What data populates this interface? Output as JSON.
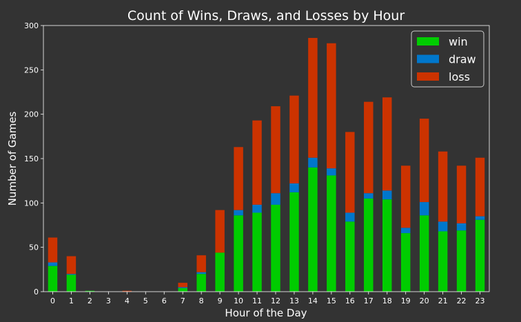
{
  "chart_data": {
    "type": "bar",
    "stacked": true,
    "title": "Count of Wins, Draws, and Losses by Hour",
    "xlabel": "Hour of the Day",
    "ylabel": "Number of Games",
    "ylim": [
      0,
      300
    ],
    "yticks": [
      0,
      50,
      100,
      150,
      200,
      250,
      300
    ],
    "grid": false,
    "legend_position": "top-right",
    "background_color": "#333333",
    "categories": [
      "0",
      "1",
      "2",
      "3",
      "4",
      "5",
      "6",
      "7",
      "8",
      "9",
      "10",
      "11",
      "12",
      "13",
      "14",
      "15",
      "16",
      "17",
      "18",
      "19",
      "20",
      "21",
      "22",
      "23"
    ],
    "series": [
      {
        "name": "win",
        "color": "#00cc00",
        "values": [
          29,
          19,
          1,
          0,
          0,
          0,
          0,
          4,
          20,
          44,
          86,
          89,
          98,
          112,
          140,
          131,
          79,
          105,
          104,
          66,
          86,
          68,
          69,
          81
        ]
      },
      {
        "name": "draw",
        "color": "#0077cc",
        "values": [
          4,
          1,
          0,
          0,
          0,
          0,
          0,
          1,
          2,
          0,
          6,
          9,
          13,
          10,
          11,
          8,
          10,
          6,
          10,
          6,
          15,
          11,
          8,
          4
        ]
      },
      {
        "name": "loss",
        "color": "#cc3300",
        "values": [
          28,
          20,
          0,
          0,
          1,
          0,
          0,
          5,
          19,
          48,
          71,
          95,
          98,
          99,
          135,
          141,
          91,
          103,
          105,
          70,
          94,
          79,
          65,
          66
        ]
      }
    ]
  }
}
